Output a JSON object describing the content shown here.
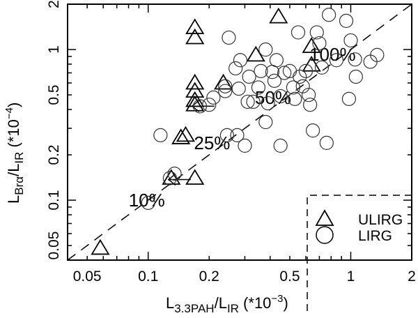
{
  "chart_data": {
    "type": "scatter",
    "title": "",
    "xlabel": "L_3.3PAH / L_IR (*10^-3)",
    "ylabel": "L_Brα / L_IR (*10^-4)",
    "xscale": "log",
    "yscale": "log",
    "xlim": [
      0.04,
      2
    ],
    "ylim": [
      0.04,
      2
    ],
    "x_ticks": [
      0.05,
      0.1,
      0.2,
      0.5,
      1,
      2
    ],
    "x_tick_labels": [
      "0.05",
      "0.1",
      "0.2",
      "0.5",
      "1",
      "2"
    ],
    "y_ticks": [
      0.05,
      0.1,
      0.2,
      0.5,
      1,
      2
    ],
    "y_tick_labels": [
      "0.05",
      "0.1",
      "0.2",
      "0.5",
      "1",
      "2"
    ],
    "grid": false,
    "legend": {
      "position": "lower right",
      "frame": "dashed",
      "entries": [
        {
          "label": "ULIRG",
          "marker": "triangle"
        },
        {
          "label": "LIRG",
          "marker": "circle"
        }
      ]
    },
    "reference_line": {
      "style": "dashed",
      "description": "y = x (100%)",
      "x": [
        0.04,
        2
      ],
      "y": [
        0.04,
        2
      ]
    },
    "annotations": [
      {
        "text": "10%",
        "x": 0.1,
        "y": 0.1
      },
      {
        "text": "25%",
        "x": 0.21,
        "y": 0.24
      },
      {
        "text": "50%",
        "x": 0.42,
        "y": 0.48
      },
      {
        "text": "100%",
        "x": 0.78,
        "y": 0.93
      }
    ],
    "series": [
      {
        "name": "ULIRG",
        "marker": "triangle",
        "points": [
          {
            "x": 0.058,
            "y": 0.048
          },
          {
            "x": 0.145,
            "y": 0.26
          },
          {
            "x": 0.153,
            "y": 0.27
          },
          {
            "x": 0.17,
            "y": 0.14
          },
          {
            "x": 0.17,
            "y": 1.4
          },
          {
            "x": 0.17,
            "y": 1.2
          },
          {
            "x": 0.17,
            "y": 0.6
          },
          {
            "x": 0.17,
            "y": 0.53
          },
          {
            "x": 0.17,
            "y": 0.46
          },
          {
            "x": 0.17,
            "y": 0.43,
            "upper_limit_x": true
          },
          {
            "x": 0.235,
            "y": 0.6
          },
          {
            "x": 0.34,
            "y": 0.92
          },
          {
            "x": 0.44,
            "y": 1.65
          },
          {
            "x": 0.64,
            "y": 1.05
          },
          {
            "x": 0.64,
            "y": 0.79
          },
          {
            "x": 0.13,
            "y": 0.14,
            "upper_limit_x": true
          }
        ]
      },
      {
        "name": "LIRG",
        "marker": "circle",
        "points": [
          {
            "x": 0.1,
            "y": 0.096
          },
          {
            "x": 0.115,
            "y": 0.27
          },
          {
            "x": 0.128,
            "y": 0.14
          },
          {
            "x": 0.135,
            "y": 0.15
          },
          {
            "x": 0.18,
            "y": 0.42
          },
          {
            "x": 0.2,
            "y": 0.43
          },
          {
            "x": 0.21,
            "y": 0.48
          },
          {
            "x": 0.24,
            "y": 0.53
          },
          {
            "x": 0.24,
            "y": 0.57
          },
          {
            "x": 0.25,
            "y": 1.2
          },
          {
            "x": 0.245,
            "y": 0.27
          },
          {
            "x": 0.275,
            "y": 0.27
          },
          {
            "x": 0.28,
            "y": 0.55
          },
          {
            "x": 0.27,
            "y": 0.75
          },
          {
            "x": 0.285,
            "y": 0.85
          },
          {
            "x": 0.3,
            "y": 0.23
          },
          {
            "x": 0.31,
            "y": 0.45
          },
          {
            "x": 0.315,
            "y": 0.66
          },
          {
            "x": 0.33,
            "y": 0.45
          },
          {
            "x": 0.35,
            "y": 0.56
          },
          {
            "x": 0.36,
            "y": 0.72
          },
          {
            "x": 0.38,
            "y": 1.0
          },
          {
            "x": 0.38,
            "y": 0.33
          },
          {
            "x": 0.39,
            "y": 0.44
          },
          {
            "x": 0.41,
            "y": 0.71
          },
          {
            "x": 0.42,
            "y": 0.62
          },
          {
            "x": 0.43,
            "y": 0.85
          },
          {
            "x": 0.45,
            "y": 0.23
          },
          {
            "x": 0.45,
            "y": 0.49
          },
          {
            "x": 0.47,
            "y": 0.7
          },
          {
            "x": 0.5,
            "y": 0.72
          },
          {
            "x": 0.52,
            "y": 0.56
          },
          {
            "x": 0.53,
            "y": 0.47
          },
          {
            "x": 0.55,
            "y": 1.3
          },
          {
            "x": 0.56,
            "y": 0.66
          },
          {
            "x": 0.58,
            "y": 0.57
          },
          {
            "x": 0.6,
            "y": 0.72
          },
          {
            "x": 0.62,
            "y": 0.5
          },
          {
            "x": 0.63,
            "y": 0.43
          },
          {
            "x": 0.65,
            "y": 0.29
          },
          {
            "x": 0.68,
            "y": 1.3
          },
          {
            "x": 0.7,
            "y": 1.1
          },
          {
            "x": 0.72,
            "y": 0.76
          },
          {
            "x": 0.76,
            "y": 0.24
          },
          {
            "x": 0.78,
            "y": 1.7
          },
          {
            "x": 0.85,
            "y": 0.85
          },
          {
            "x": 0.95,
            "y": 1.55
          },
          {
            "x": 0.98,
            "y": 0.47
          },
          {
            "x": 1.0,
            "y": 1.15
          },
          {
            "x": 1.05,
            "y": 0.86
          },
          {
            "x": 1.06,
            "y": 0.66
          },
          {
            "x": 1.25,
            "y": 0.83
          },
          {
            "x": 1.35,
            "y": 0.92
          }
        ]
      }
    ]
  },
  "axes": {
    "xlabel_main": "L",
    "xlabel_sub": "3.3PAH",
    "xlabel_slash": "/L",
    "xlabel_sub2": "IR",
    "xlabel_unit": " (*10",
    "xlabel_exp": "−3",
    "xlabel_close": ")",
    "ylabel_main": "L",
    "ylabel_sub": "Brα",
    "ylabel_slash": "/L",
    "ylabel_sub2": "IR",
    "ylabel_unit": " (*10",
    "ylabel_exp": "−4",
    "ylabel_close": ")"
  },
  "legend": {
    "ulirg_label": "ULIRG",
    "lirg_label": "LIRG"
  },
  "annotations": {
    "a10": "10%",
    "a25": "25%",
    "a50": "50%",
    "a100": "100%"
  }
}
